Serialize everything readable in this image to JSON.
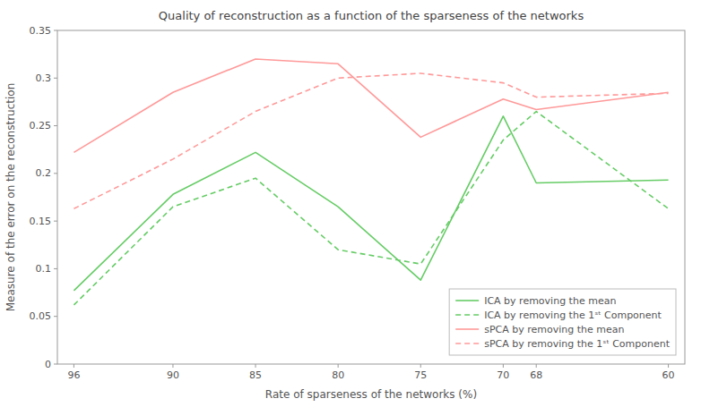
{
  "chart_data": {
    "type": "line",
    "title": "Quality of reconstruction as a function of the sparseness of the networks",
    "x_label": "Rate of sparseness of the networks (%)",
    "y_label": "Measure of the error on the reconstruction",
    "x": [
      96,
      90,
      85,
      80,
      75,
      70,
      68,
      60
    ],
    "series": [
      {
        "name": "ICA by removing the mean",
        "color": "#66cc66",
        "line_style": "solid",
        "values": [
          0.077,
          0.178,
          0.222,
          0.165,
          0.088,
          0.26,
          0.19,
          0.193
        ]
      },
      {
        "name": "ICA by removing the 1ˢᵗ Component",
        "color": "#66cc66",
        "line_style": "dashed",
        "values": [
          0.062,
          0.165,
          0.195,
          0.12,
          0.105,
          0.235,
          0.265,
          0.163
        ]
      },
      {
        "name": "sPCA by removing the mean",
        "color": "#ff9999",
        "line_style": "solid",
        "values": [
          0.222,
          0.285,
          0.32,
          0.315,
          0.238,
          0.278,
          0.267,
          0.285
        ]
      },
      {
        "name": "sPCA by removing the 1ˢᵗ Component",
        "color": "#ff9999",
        "line_style": "dashed",
        "values": [
          0.163,
          0.215,
          0.265,
          0.3,
          0.305,
          0.295,
          0.28,
          0.284
        ]
      }
    ],
    "xlim": [
      97,
      59
    ],
    "xticks": [
      96,
      90,
      85,
      80,
      75,
      70,
      68,
      60
    ],
    "ylim": [
      0,
      0.35
    ],
    "yticks": [
      0,
      0.05,
      0.1,
      0.15,
      0.2,
      0.25,
      0.3,
      0.35
    ],
    "grid": false,
    "legend": "lower-right"
  }
}
